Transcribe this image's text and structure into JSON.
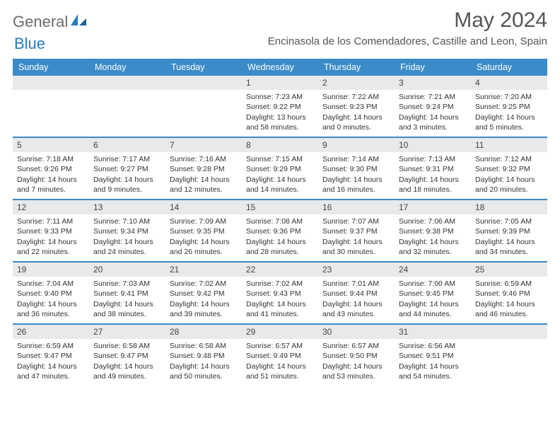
{
  "logo": {
    "word1": "General",
    "word2": "Blue"
  },
  "title": "May 2024",
  "location": "Encinasola de los Comendadores, Castille and Leon, Spain",
  "dayNames": [
    "Sunday",
    "Monday",
    "Tuesday",
    "Wednesday",
    "Thursday",
    "Friday",
    "Saturday"
  ],
  "colors": {
    "header_bg": "#3b8bc8",
    "header_text": "#ffffff",
    "daynum_bg": "#e8e9ea",
    "border": "#3b8bc8",
    "body_text": "#333333",
    "title_text": "#555555",
    "logo_gray": "#6a6a6a",
    "logo_blue": "#2b7bbf",
    "page_bg": "#ffffff"
  },
  "typography": {
    "title_fontsize": 30,
    "location_fontsize": 15,
    "dayhead_fontsize": 12.5,
    "daynum_fontsize": 12,
    "cell_fontsize": 10.5
  },
  "weeks": [
    [
      {
        "day": "",
        "sunrise": "",
        "sunset": "",
        "daylight": ""
      },
      {
        "day": "",
        "sunrise": "",
        "sunset": "",
        "daylight": ""
      },
      {
        "day": "",
        "sunrise": "",
        "sunset": "",
        "daylight": ""
      },
      {
        "day": "1",
        "sunrise": "Sunrise: 7:23 AM",
        "sunset": "Sunset: 9:22 PM",
        "daylight": "Daylight: 13 hours and 58 minutes."
      },
      {
        "day": "2",
        "sunrise": "Sunrise: 7:22 AM",
        "sunset": "Sunset: 9:23 PM",
        "daylight": "Daylight: 14 hours and 0 minutes."
      },
      {
        "day": "3",
        "sunrise": "Sunrise: 7:21 AM",
        "sunset": "Sunset: 9:24 PM",
        "daylight": "Daylight: 14 hours and 3 minutes."
      },
      {
        "day": "4",
        "sunrise": "Sunrise: 7:20 AM",
        "sunset": "Sunset: 9:25 PM",
        "daylight": "Daylight: 14 hours and 5 minutes."
      }
    ],
    [
      {
        "day": "5",
        "sunrise": "Sunrise: 7:18 AM",
        "sunset": "Sunset: 9:26 PM",
        "daylight": "Daylight: 14 hours and 7 minutes."
      },
      {
        "day": "6",
        "sunrise": "Sunrise: 7:17 AM",
        "sunset": "Sunset: 9:27 PM",
        "daylight": "Daylight: 14 hours and 9 minutes."
      },
      {
        "day": "7",
        "sunrise": "Sunrise: 7:16 AM",
        "sunset": "Sunset: 9:28 PM",
        "daylight": "Daylight: 14 hours and 12 minutes."
      },
      {
        "day": "8",
        "sunrise": "Sunrise: 7:15 AM",
        "sunset": "Sunset: 9:29 PM",
        "daylight": "Daylight: 14 hours and 14 minutes."
      },
      {
        "day": "9",
        "sunrise": "Sunrise: 7:14 AM",
        "sunset": "Sunset: 9:30 PM",
        "daylight": "Daylight: 14 hours and 16 minutes."
      },
      {
        "day": "10",
        "sunrise": "Sunrise: 7:13 AM",
        "sunset": "Sunset: 9:31 PM",
        "daylight": "Daylight: 14 hours and 18 minutes."
      },
      {
        "day": "11",
        "sunrise": "Sunrise: 7:12 AM",
        "sunset": "Sunset: 9:32 PM",
        "daylight": "Daylight: 14 hours and 20 minutes."
      }
    ],
    [
      {
        "day": "12",
        "sunrise": "Sunrise: 7:11 AM",
        "sunset": "Sunset: 9:33 PM",
        "daylight": "Daylight: 14 hours and 22 minutes."
      },
      {
        "day": "13",
        "sunrise": "Sunrise: 7:10 AM",
        "sunset": "Sunset: 9:34 PM",
        "daylight": "Daylight: 14 hours and 24 minutes."
      },
      {
        "day": "14",
        "sunrise": "Sunrise: 7:09 AM",
        "sunset": "Sunset: 9:35 PM",
        "daylight": "Daylight: 14 hours and 26 minutes."
      },
      {
        "day": "15",
        "sunrise": "Sunrise: 7:08 AM",
        "sunset": "Sunset: 9:36 PM",
        "daylight": "Daylight: 14 hours and 28 minutes."
      },
      {
        "day": "16",
        "sunrise": "Sunrise: 7:07 AM",
        "sunset": "Sunset: 9:37 PM",
        "daylight": "Daylight: 14 hours and 30 minutes."
      },
      {
        "day": "17",
        "sunrise": "Sunrise: 7:06 AM",
        "sunset": "Sunset: 9:38 PM",
        "daylight": "Daylight: 14 hours and 32 minutes."
      },
      {
        "day": "18",
        "sunrise": "Sunrise: 7:05 AM",
        "sunset": "Sunset: 9:39 PM",
        "daylight": "Daylight: 14 hours and 34 minutes."
      }
    ],
    [
      {
        "day": "19",
        "sunrise": "Sunrise: 7:04 AM",
        "sunset": "Sunset: 9:40 PM",
        "daylight": "Daylight: 14 hours and 36 minutes."
      },
      {
        "day": "20",
        "sunrise": "Sunrise: 7:03 AM",
        "sunset": "Sunset: 9:41 PM",
        "daylight": "Daylight: 14 hours and 38 minutes."
      },
      {
        "day": "21",
        "sunrise": "Sunrise: 7:02 AM",
        "sunset": "Sunset: 9:42 PM",
        "daylight": "Daylight: 14 hours and 39 minutes."
      },
      {
        "day": "22",
        "sunrise": "Sunrise: 7:02 AM",
        "sunset": "Sunset: 9:43 PM",
        "daylight": "Daylight: 14 hours and 41 minutes."
      },
      {
        "day": "23",
        "sunrise": "Sunrise: 7:01 AM",
        "sunset": "Sunset: 9:44 PM",
        "daylight": "Daylight: 14 hours and 43 minutes."
      },
      {
        "day": "24",
        "sunrise": "Sunrise: 7:00 AM",
        "sunset": "Sunset: 9:45 PM",
        "daylight": "Daylight: 14 hours and 44 minutes."
      },
      {
        "day": "25",
        "sunrise": "Sunrise: 6:59 AM",
        "sunset": "Sunset: 9:46 PM",
        "daylight": "Daylight: 14 hours and 46 minutes."
      }
    ],
    [
      {
        "day": "26",
        "sunrise": "Sunrise: 6:59 AM",
        "sunset": "Sunset: 9:47 PM",
        "daylight": "Daylight: 14 hours and 47 minutes."
      },
      {
        "day": "27",
        "sunrise": "Sunrise: 6:58 AM",
        "sunset": "Sunset: 9:47 PM",
        "daylight": "Daylight: 14 hours and 49 minutes."
      },
      {
        "day": "28",
        "sunrise": "Sunrise: 6:58 AM",
        "sunset": "Sunset: 9:48 PM",
        "daylight": "Daylight: 14 hours and 50 minutes."
      },
      {
        "day": "29",
        "sunrise": "Sunrise: 6:57 AM",
        "sunset": "Sunset: 9:49 PM",
        "daylight": "Daylight: 14 hours and 51 minutes."
      },
      {
        "day": "30",
        "sunrise": "Sunrise: 6:57 AM",
        "sunset": "Sunset: 9:50 PM",
        "daylight": "Daylight: 14 hours and 53 minutes."
      },
      {
        "day": "31",
        "sunrise": "Sunrise: 6:56 AM",
        "sunset": "Sunset: 9:51 PM",
        "daylight": "Daylight: 14 hours and 54 minutes."
      },
      {
        "day": "",
        "sunrise": "",
        "sunset": "",
        "daylight": ""
      }
    ]
  ]
}
